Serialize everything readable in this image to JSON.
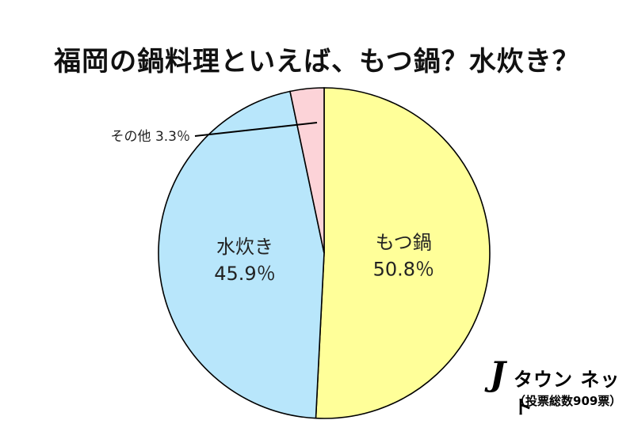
{
  "chart_data": {
    "type": "pie",
    "title": "福岡の鍋料理といえば、もつ鍋？水炊き？",
    "slices": [
      {
        "label": "もつ鍋",
        "value": 50.8,
        "value_text": "50.8％",
        "color": "#ffff99"
      },
      {
        "label": "水炊き",
        "value": 45.9,
        "value_text": "45.9％",
        "color": "#b8e6fb"
      },
      {
        "label": "その他",
        "value": 3.3,
        "value_text": "3.3％",
        "color": "#fcd3d8"
      }
    ]
  },
  "brand": {
    "logo_letter": "J",
    "name": "タウン ネット",
    "note": "（投票総数909票）"
  }
}
